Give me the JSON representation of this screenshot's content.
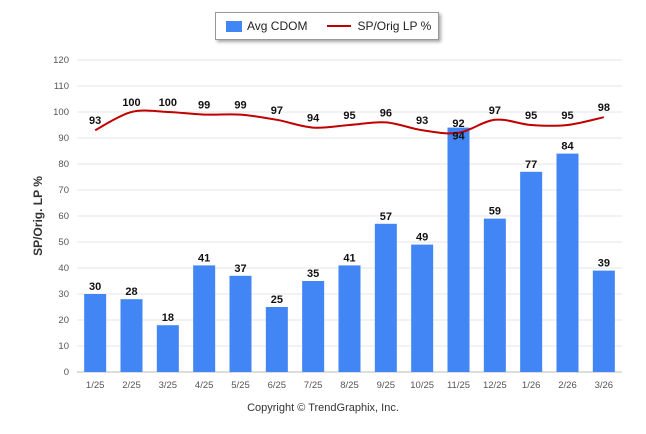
{
  "legend": {
    "bar_label": "Avg CDOM",
    "line_label": "SP/Orig LP %"
  },
  "colors": {
    "bar": "#4285f4",
    "line": "#c00000",
    "grid": "#e6e6e6"
  },
  "copyright": "Copyright © TrendGraphix, Inc.",
  "chart_data": {
    "type": "bar",
    "title": "",
    "xlabel": "",
    "ylabel": "SP/Orig. LP %",
    "ylim": [
      0,
      120
    ],
    "yticks": [
      0,
      10,
      20,
      30,
      40,
      50,
      60,
      70,
      80,
      90,
      100,
      110,
      120
    ],
    "grid": true,
    "legend_position": "top-center",
    "categories": [
      "1/25",
      "2/25",
      "3/25",
      "4/25",
      "5/25",
      "6/25",
      "7/25",
      "8/25",
      "9/25",
      "10/25",
      "11/25",
      "12/25",
      "1/26",
      "2/26",
      "3/26"
    ],
    "series": [
      {
        "name": "Avg CDOM",
        "type": "bar",
        "values": [
          30,
          28,
          18,
          41,
          37,
          25,
          35,
          41,
          57,
          49,
          94,
          59,
          77,
          84,
          39
        ]
      },
      {
        "name": "SP/Orig LP %",
        "type": "line",
        "values": [
          93,
          100,
          100,
          99,
          99,
          97,
          94,
          95,
          96,
          93,
          92,
          97,
          95,
          95,
          98
        ]
      }
    ]
  }
}
